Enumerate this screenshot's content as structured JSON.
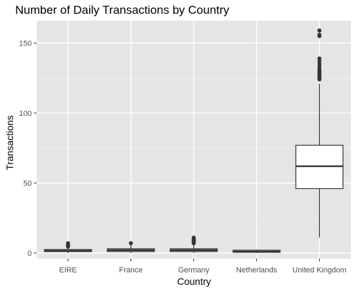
{
  "chart_data": {
    "type": "box",
    "title": "Number of Daily Transactions by Country",
    "xlabel": "Country",
    "ylabel": "Transactions",
    "ylim": [
      -4,
      166
    ],
    "yticks": [
      0,
      50,
      100,
      150
    ],
    "grid": true,
    "legend": "none",
    "colors": {
      "panel": "#e5e5e5",
      "grid_major": "#ffffff",
      "grid_minor": "#f2f2f2",
      "box_fill": "#ffffff",
      "box_line": "#333333",
      "tick_text": "#4d4d4d"
    },
    "categories": [
      "EIRE",
      "France",
      "Germany",
      "Netherlands",
      "United Kingdom"
    ],
    "boxes": [
      {
        "category": "EIRE",
        "min": 0,
        "q1": 1,
        "median": 1.5,
        "q3": 2.5,
        "max": 4,
        "outliers": [
          4.5,
          5,
          5.5,
          6,
          7
        ]
      },
      {
        "category": "France",
        "min": 0,
        "q1": 1,
        "median": 2,
        "q3": 3,
        "max": 6,
        "outliers": [
          7
        ]
      },
      {
        "category": "Germany",
        "min": 0,
        "q1": 1,
        "median": 2,
        "q3": 3,
        "max": 6,
        "outliers": [
          7,
          7.5,
          8,
          8.5,
          9,
          9.5,
          10,
          11
        ]
      },
      {
        "category": "Netherlands",
        "min": 0,
        "q1": 0.5,
        "median": 1,
        "q3": 2,
        "max": 2.5,
        "outliers": []
      },
      {
        "category": "United Kingdom",
        "min": 11,
        "q1": 46,
        "median": 62,
        "q3": 77,
        "max": 121,
        "outliers": [
          124,
          125,
          126,
          127,
          128,
          129,
          130,
          131,
          133,
          135,
          137,
          139,
          155,
          156,
          159
        ]
      }
    ]
  }
}
